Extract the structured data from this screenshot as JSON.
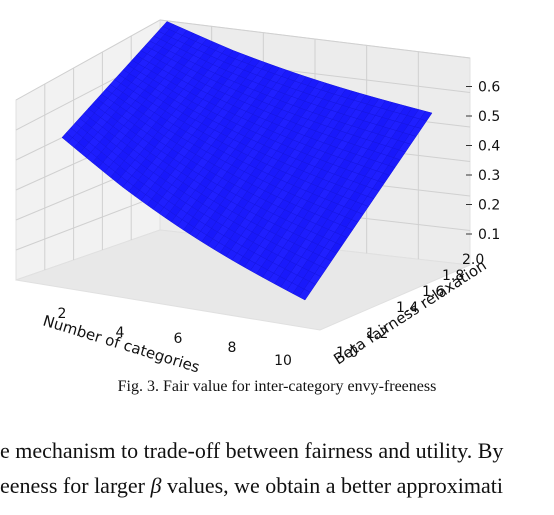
{
  "chart_data": {
    "type": "surface3d",
    "title": "",
    "xlabel": "Number of categories",
    "ylabel": "Beta fairness relaxation",
    "zlabel": "",
    "x_ticks": [
      "2",
      "4",
      "6",
      "8",
      "10"
    ],
    "y_ticks": [
      "1.0",
      "1.2",
      "1.4",
      "1.6",
      "1.8",
      "2.0"
    ],
    "z_ticks": [
      "0.1",
      "0.2",
      "0.3",
      "0.4",
      "0.5",
      "0.6"
    ],
    "xlim": [
      1,
      11
    ],
    "ylim": [
      1.0,
      2.0
    ],
    "zlim": [
      0.1,
      0.65
    ],
    "surface_color": "#2020ff",
    "x": [
      1,
      11
    ],
    "y": [
      1.0,
      2.0
    ],
    "corner_values": {
      "x1_y1.0": 0.42,
      "x1_y2.0": 0.65,
      "x11_y1.0": 0.1,
      "x11_y2.0": 0.5
    },
    "grid": true
  },
  "caption": "Fig. 3.  Fair value for inter-category envy-freeness",
  "body_text": {
    "line1": "e mechanism to trade-off between fairness and utility. By",
    "line2_pre": "eeness for larger ",
    "line2_beta": "β",
    "line2_post": " values, we obtain a better approximati"
  }
}
